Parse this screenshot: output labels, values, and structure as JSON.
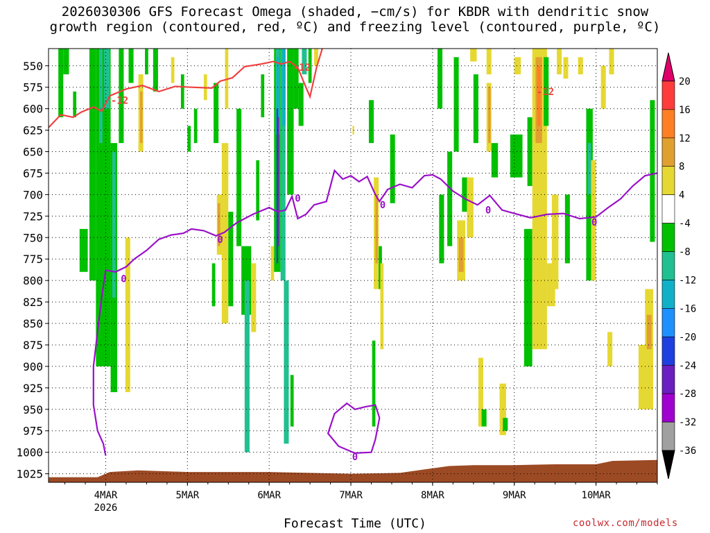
{
  "title_line1": "2026030306 GFS Forecast Omega (shaded, −cm/s) for KBDR with dendritic snow",
  "title_line2": "growth region (contoured, red, ºC) and freezing level (contoured, purple, ºC)",
  "credit": "coolwx.com/models",
  "chart_data": {
    "type": "time-height cross-section",
    "title": "2026030306 GFS Forecast Omega (shaded, −cm/s) for KBDR with dendritic snow growth region (contoured, red, ºC) and freezing level (contoured, purple, ºC)",
    "xlabel": "Forecast Time (UTC)",
    "ylabel": "",
    "x_ticks": [
      "4MAR",
      "5MAR",
      "6MAR",
      "7MAR",
      "8MAR",
      "9MAR",
      "10MAR"
    ],
    "x_tick_day": [
      4,
      5,
      6,
      7,
      8,
      9,
      10
    ],
    "x_year_label": "2026",
    "x_range_days": [
      3.3,
      10.75
    ],
    "y_ticks": [
      550,
      575,
      600,
      625,
      650,
      675,
      700,
      725,
      750,
      775,
      800,
      825,
      850,
      875,
      900,
      925,
      950,
      975,
      1000,
      1025
    ],
    "y_range_hpa": [
      530,
      1035
    ],
    "y_reversed": true,
    "grid": "dotted",
    "colorbar": {
      "levels": [
        20,
        16,
        12,
        8,
        4,
        -4,
        -8,
        -12,
        -16,
        -20,
        -24,
        -28,
        -32,
        -36
      ],
      "colors": [
        "#e0006a",
        "#ff3c3c",
        "#ff7f24",
        "#e0a030",
        "#e6d832",
        "#ffffff",
        "#00c000",
        "#20c090",
        "#10b0c8",
        "#1e90ff",
        "#1e40e0",
        "#6a20c0",
        "#a000d0",
        "#a0a0a0",
        "#000000"
      ]
    },
    "contour_labels": {
      "dgz": "-12",
      "freezing": "0"
    },
    "dgz_line_hpa": [
      [
        3.3,
        622
      ],
      [
        3.45,
        607
      ],
      [
        3.6,
        610
      ],
      [
        3.7,
        604
      ],
      [
        3.85,
        598
      ],
      [
        3.95,
        603
      ],
      [
        4.05,
        585
      ],
      [
        4.25,
        577
      ],
      [
        4.45,
        573
      ],
      [
        4.65,
        580
      ],
      [
        4.85,
        574
      ],
      [
        5.05,
        575
      ],
      [
        5.3,
        576
      ],
      [
        5.4,
        568
      ],
      [
        5.55,
        564
      ],
      [
        5.7,
        551
      ],
      [
        5.9,
        548
      ],
      [
        6.05,
        545
      ],
      [
        6.15,
        548
      ],
      [
        6.25,
        545
      ],
      [
        6.35,
        552
      ],
      [
        6.45,
        575
      ],
      [
        6.5,
        586
      ],
      [
        6.58,
        552
      ],
      [
        6.65,
        530
      ]
    ],
    "freezing_line_hpa": [
      [
        4.0,
        1004
      ],
      [
        3.97,
        990
      ],
      [
        3.9,
        975
      ],
      [
        3.85,
        945
      ],
      [
        3.85,
        900
      ],
      [
        3.9,
        860
      ],
      [
        3.95,
        820
      ],
      [
        4.0,
        788
      ],
      [
        4.12,
        790
      ],
      [
        4.25,
        784
      ],
      [
        4.35,
        775
      ],
      [
        4.5,
        765
      ],
      [
        4.65,
        752
      ],
      [
        4.8,
        747
      ],
      [
        4.95,
        745
      ],
      [
        5.05,
        740
      ],
      [
        5.2,
        742
      ],
      [
        5.35,
        748
      ],
      [
        5.45,
        744
      ],
      [
        5.6,
        733
      ],
      [
        5.8,
        723
      ],
      [
        6.0,
        715
      ],
      [
        6.1,
        720
      ],
      [
        6.2,
        718
      ],
      [
        6.28,
        702
      ],
      [
        6.35,
        728
      ],
      [
        6.45,
        723
      ],
      [
        6.55,
        712
      ],
      [
        6.7,
        708
      ],
      [
        6.8,
        672
      ],
      [
        6.9,
        682
      ],
      [
        7.0,
        678
      ],
      [
        7.1,
        685
      ],
      [
        7.2,
        679
      ],
      [
        7.3,
        700
      ],
      [
        7.35,
        708
      ],
      [
        7.45,
        694
      ],
      [
        7.6,
        688
      ],
      [
        7.75,
        692
      ],
      [
        7.9,
        678
      ],
      [
        8.0,
        677
      ],
      [
        8.1,
        682
      ],
      [
        8.25,
        696
      ],
      [
        8.4,
        705
      ],
      [
        8.55,
        712
      ],
      [
        8.7,
        701
      ],
      [
        8.85,
        718
      ],
      [
        9.0,
        722
      ],
      [
        9.2,
        727
      ],
      [
        9.4,
        723
      ],
      [
        9.6,
        722
      ],
      [
        9.8,
        728
      ],
      [
        10.0,
        726
      ],
      [
        10.15,
        715
      ],
      [
        10.3,
        705
      ],
      [
        10.45,
        690
      ],
      [
        10.6,
        678
      ],
      [
        10.75,
        675
      ]
    ],
    "freezing_loop_hpa": [
      [
        7.05,
        1001
      ],
      [
        6.85,
        993
      ],
      [
        6.72,
        978
      ],
      [
        6.8,
        955
      ],
      [
        6.95,
        943
      ],
      [
        7.05,
        950
      ],
      [
        7.18,
        947
      ],
      [
        7.3,
        945
      ],
      [
        7.35,
        960
      ],
      [
        7.3,
        985
      ],
      [
        7.25,
        1000
      ],
      [
        7.05,
        1001
      ]
    ],
    "terrain_hpa": [
      [
        3.3,
        1029
      ],
      [
        3.9,
        1029
      ],
      [
        4.05,
        1023
      ],
      [
        4.4,
        1021
      ],
      [
        5.0,
        1023
      ],
      [
        6.0,
        1023
      ],
      [
        7.0,
        1025
      ],
      [
        7.6,
        1024
      ],
      [
        7.9,
        1020
      ],
      [
        8.2,
        1016
      ],
      [
        8.5,
        1015
      ],
      [
        9.0,
        1015
      ],
      [
        9.5,
        1014
      ],
      [
        10.0,
        1014
      ],
      [
        10.2,
        1010
      ],
      [
        10.75,
        1009
      ]
    ],
    "omega_cells": [
      {
        "t0": 3.42,
        "t1": 3.48,
        "p0": 530,
        "p1": 610,
        "cls": "-8"
      },
      {
        "t0": 3.48,
        "t1": 3.55,
        "p0": 530,
        "p1": 560,
        "cls": "-8"
      },
      {
        "t0": 3.6,
        "t1": 3.64,
        "p0": 580,
        "p1": 610,
        "cls": "-8"
      },
      {
        "t0": 3.68,
        "t1": 3.78,
        "p0": 740,
        "p1": 790,
        "cls": "-8"
      },
      {
        "t0": 3.8,
        "t1": 3.88,
        "p0": 530,
        "p1": 800,
        "cls": "-8"
      },
      {
        "t0": 3.88,
        "t1": 4.06,
        "p0": 530,
        "p1": 900,
        "cls": "-8"
      },
      {
        "t0": 3.92,
        "t1": 3.96,
        "p0": 530,
        "p1": 640,
        "cls": "-12"
      },
      {
        "t0": 3.98,
        "t1": 4.05,
        "p0": 530,
        "p1": 600,
        "cls": "-12"
      },
      {
        "t0": 4.06,
        "t1": 4.14,
        "p0": 640,
        "p1": 930,
        "cls": "-8"
      },
      {
        "t0": 4.08,
        "t1": 4.12,
        "p0": 650,
        "p1": 820,
        "cls": "-12"
      },
      {
        "t0": 4.16,
        "t1": 4.22,
        "p0": 530,
        "p1": 640,
        "cls": "-8"
      },
      {
        "t0": 4.24,
        "t1": 4.3,
        "p0": 750,
        "p1": 930,
        "cls": "4"
      },
      {
        "t0": 4.28,
        "t1": 4.34,
        "p0": 530,
        "p1": 570,
        "cls": "-8"
      },
      {
        "t0": 4.4,
        "t1": 4.46,
        "p0": 560,
        "p1": 650,
        "cls": "4"
      },
      {
        "t0": 4.42,
        "t1": 4.45,
        "p0": 580,
        "p1": 640,
        "cls": "8"
      },
      {
        "t0": 4.48,
        "t1": 4.52,
        "p0": 530,
        "p1": 560,
        "cls": "-8"
      },
      {
        "t0": 4.58,
        "t1": 4.64,
        "p0": 530,
        "p1": 580,
        "cls": "-8"
      },
      {
        "t0": 4.8,
        "t1": 4.84,
        "p0": 540,
        "p1": 570,
        "cls": "4"
      },
      {
        "t0": 4.92,
        "t1": 4.96,
        "p0": 560,
        "p1": 600,
        "cls": "-8"
      },
      {
        "t0": 5.0,
        "t1": 5.04,
        "p0": 620,
        "p1": 650,
        "cls": "-8"
      },
      {
        "t0": 5.08,
        "t1": 5.12,
        "p0": 600,
        "p1": 640,
        "cls": "-8"
      },
      {
        "t0": 5.2,
        "t1": 5.24,
        "p0": 560,
        "p1": 590,
        "cls": "4"
      },
      {
        "t0": 5.3,
        "t1": 5.34,
        "p0": 780,
        "p1": 830,
        "cls": "-8"
      },
      {
        "t0": 5.32,
        "t1": 5.38,
        "p0": 570,
        "p1": 640,
        "cls": "-8"
      },
      {
        "t0": 5.36,
        "t1": 5.44,
        "p0": 700,
        "p1": 770,
        "cls": "4"
      },
      {
        "t0": 5.37,
        "t1": 5.4,
        "p0": 710,
        "p1": 760,
        "cls": "8"
      },
      {
        "t0": 5.42,
        "t1": 5.5,
        "p0": 640,
        "p1": 850,
        "cls": "4"
      },
      {
        "t0": 5.46,
        "t1": 5.5,
        "p0": 530,
        "p1": 600,
        "cls": "4"
      },
      {
        "t0": 5.5,
        "t1": 5.56,
        "p0": 720,
        "p1": 830,
        "cls": "-8"
      },
      {
        "t0": 5.6,
        "t1": 5.66,
        "p0": 600,
        "p1": 760,
        "cls": "-8"
      },
      {
        "t0": 5.66,
        "t1": 5.78,
        "p0": 760,
        "p1": 840,
        "cls": "-8"
      },
      {
        "t0": 5.7,
        "t1": 5.76,
        "p0": 800,
        "p1": 1000,
        "cls": "-12"
      },
      {
        "t0": 5.78,
        "t1": 5.84,
        "p0": 780,
        "p1": 860,
        "cls": "4"
      },
      {
        "t0": 5.84,
        "t1": 5.88,
        "p0": 660,
        "p1": 730,
        "cls": "-8"
      },
      {
        "t0": 5.9,
        "t1": 5.94,
        "p0": 560,
        "p1": 610,
        "cls": "-8"
      },
      {
        "t0": 6.02,
        "t1": 6.06,
        "p0": 760,
        "p1": 800,
        "cls": "4"
      },
      {
        "t0": 6.06,
        "t1": 6.14,
        "p0": 530,
        "p1": 790,
        "cls": "-8"
      },
      {
        "t0": 6.08,
        "t1": 6.13,
        "p0": 530,
        "p1": 630,
        "cls": "-12"
      },
      {
        "t0": 6.09,
        "t1": 6.12,
        "p0": 540,
        "p1": 610,
        "cls": "-16"
      },
      {
        "t0": 6.09,
        "t1": 6.11,
        "p0": 600,
        "p1": 780,
        "cls": "-24"
      },
      {
        "t0": 6.1,
        "t1": 6.12,
        "p0": 610,
        "p1": 760,
        "cls": "-28"
      },
      {
        "t0": 6.14,
        "t1": 6.2,
        "p0": 530,
        "p1": 800,
        "cls": "-12"
      },
      {
        "t0": 6.16,
        "t1": 6.2,
        "p0": 530,
        "p1": 620,
        "cls": "-16"
      },
      {
        "t0": 6.18,
        "t1": 6.24,
        "p0": 800,
        "p1": 990,
        "cls": "-12"
      },
      {
        "t0": 6.22,
        "t1": 6.3,
        "p0": 530,
        "p1": 700,
        "cls": "-8"
      },
      {
        "t0": 6.26,
        "t1": 6.3,
        "p0": 910,
        "p1": 970,
        "cls": "-8"
      },
      {
        "t0": 6.3,
        "t1": 6.36,
        "p0": 530,
        "p1": 600,
        "cls": "-8"
      },
      {
        "t0": 6.36,
        "t1": 6.42,
        "p0": 570,
        "p1": 620,
        "cls": "-8"
      },
      {
        "t0": 6.4,
        "t1": 6.46,
        "p0": 530,
        "p1": 560,
        "cls": "-12"
      },
      {
        "t0": 6.48,
        "t1": 6.52,
        "p0": 530,
        "p1": 570,
        "cls": "-8"
      },
      {
        "t0": 6.55,
        "t1": 6.6,
        "p0": 530,
        "p1": 550,
        "cls": "4"
      },
      {
        "t0": 7.02,
        "t1": 7.04,
        "p0": 620,
        "p1": 630,
        "cls": "4"
      },
      {
        "t0": 7.22,
        "t1": 7.28,
        "p0": 590,
        "p1": 640,
        "cls": "-8"
      },
      {
        "t0": 7.26,
        "t1": 7.3,
        "p0": 870,
        "p1": 970,
        "cls": "-8"
      },
      {
        "t0": 7.28,
        "t1": 7.34,
        "p0": 680,
        "p1": 810,
        "cls": "4"
      },
      {
        "t0": 7.3,
        "t1": 7.33,
        "p0": 700,
        "p1": 780,
        "cls": "8"
      },
      {
        "t0": 7.34,
        "t1": 7.38,
        "p0": 760,
        "p1": 810,
        "cls": "-8"
      },
      {
        "t0": 7.36,
        "t1": 7.4,
        "p0": 780,
        "p1": 880,
        "cls": "4"
      },
      {
        "t0": 7.48,
        "t1": 7.54,
        "p0": 630,
        "p1": 710,
        "cls": "-8"
      },
      {
        "t0": 8.06,
        "t1": 8.12,
        "p0": 530,
        "p1": 600,
        "cls": "-8"
      },
      {
        "t0": 8.08,
        "t1": 8.14,
        "p0": 700,
        "p1": 780,
        "cls": "-8"
      },
      {
        "t0": 8.18,
        "t1": 8.24,
        "p0": 650,
        "p1": 760,
        "cls": "-8"
      },
      {
        "t0": 8.26,
        "t1": 8.32,
        "p0": 540,
        "p1": 650,
        "cls": "-8"
      },
      {
        "t0": 8.3,
        "t1": 8.4,
        "p0": 730,
        "p1": 800,
        "cls": "4"
      },
      {
        "t0": 8.32,
        "t1": 8.38,
        "p0": 750,
        "p1": 790,
        "cls": "8"
      },
      {
        "t0": 8.36,
        "t1": 8.44,
        "p0": 680,
        "p1": 720,
        "cls": "-8"
      },
      {
        "t0": 8.42,
        "t1": 8.5,
        "p0": 680,
        "p1": 750,
        "cls": "4"
      },
      {
        "t0": 8.46,
        "t1": 8.54,
        "p0": 530,
        "p1": 545,
        "cls": "4"
      },
      {
        "t0": 8.5,
        "t1": 8.56,
        "p0": 560,
        "p1": 640,
        "cls": "-8"
      },
      {
        "t0": 8.56,
        "t1": 8.62,
        "p0": 890,
        "p1": 970,
        "cls": "4"
      },
      {
        "t0": 8.6,
        "t1": 8.66,
        "p0": 950,
        "p1": 970,
        "cls": "-8"
      },
      {
        "t0": 8.66,
        "t1": 8.72,
        "p0": 530,
        "p1": 560,
        "cls": "4"
      },
      {
        "t0": 8.66,
        "t1": 8.72,
        "p0": 570,
        "p1": 650,
        "cls": "4"
      },
      {
        "t0": 8.68,
        "t1": 8.71,
        "p0": 575,
        "p1": 640,
        "cls": "8"
      },
      {
        "t0": 8.72,
        "t1": 8.8,
        "p0": 640,
        "p1": 680,
        "cls": "-8"
      },
      {
        "t0": 8.82,
        "t1": 8.9,
        "p0": 920,
        "p1": 980,
        "cls": "4"
      },
      {
        "t0": 8.86,
        "t1": 8.92,
        "p0": 960,
        "p1": 975,
        "cls": "-8"
      },
      {
        "t0": 8.95,
        "t1": 9.1,
        "p0": 630,
        "p1": 680,
        "cls": "-8"
      },
      {
        "t0": 9.0,
        "t1": 9.08,
        "p0": 540,
        "p1": 560,
        "cls": "4"
      },
      {
        "t0": 9.12,
        "t1": 9.22,
        "p0": 740,
        "p1": 900,
        "cls": "-8"
      },
      {
        "t0": 9.16,
        "t1": 9.22,
        "p0": 610,
        "p1": 690,
        "cls": "-8"
      },
      {
        "t0": 9.22,
        "t1": 9.4,
        "p0": 530,
        "p1": 880,
        "cls": "4"
      },
      {
        "t0": 9.26,
        "t1": 9.34,
        "p0": 540,
        "p1": 640,
        "cls": "8"
      },
      {
        "t0": 9.28,
        "t1": 9.32,
        "p0": 550,
        "p1": 620,
        "cls": "12"
      },
      {
        "t0": 9.36,
        "t1": 9.42,
        "p0": 540,
        "p1": 620,
        "cls": "-8"
      },
      {
        "t0": 9.4,
        "t1": 9.5,
        "p0": 780,
        "p1": 830,
        "cls": "4"
      },
      {
        "t0": 9.46,
        "t1": 9.54,
        "p0": 700,
        "p1": 810,
        "cls": "4"
      },
      {
        "t0": 9.52,
        "t1": 9.58,
        "p0": 530,
        "p1": 560,
        "cls": "4"
      },
      {
        "t0": 9.6,
        "t1": 9.66,
        "p0": 540,
        "p1": 565,
        "cls": "4"
      },
      {
        "t0": 9.62,
        "t1": 9.68,
        "p0": 700,
        "p1": 780,
        "cls": "-8"
      },
      {
        "t0": 9.78,
        "t1": 9.84,
        "p0": 540,
        "p1": 560,
        "cls": "4"
      },
      {
        "t0": 9.88,
        "t1": 9.96,
        "p0": 600,
        "p1": 800,
        "cls": "-8"
      },
      {
        "t0": 9.9,
        "t1": 9.94,
        "p0": 640,
        "p1": 700,
        "cls": "-12"
      },
      {
        "t0": 9.94,
        "t1": 10.0,
        "p0": 660,
        "p1": 800,
        "cls": "4"
      },
      {
        "t0": 10.06,
        "t1": 10.12,
        "p0": 550,
        "p1": 600,
        "cls": "4"
      },
      {
        "t0": 10.14,
        "t1": 10.2,
        "p0": 860,
        "p1": 900,
        "cls": "4"
      },
      {
        "t0": 10.16,
        "t1": 10.22,
        "p0": 530,
        "p1": 560,
        "cls": "4"
      },
      {
        "t0": 10.52,
        "t1": 10.62,
        "p0": 875,
        "p1": 950,
        "cls": "4"
      },
      {
        "t0": 10.6,
        "t1": 10.7,
        "p0": 810,
        "p1": 950,
        "cls": "4"
      },
      {
        "t0": 10.62,
        "t1": 10.68,
        "p0": 840,
        "p1": 880,
        "cls": "8"
      },
      {
        "t0": 10.66,
        "t1": 10.72,
        "p0": 590,
        "p1": 755,
        "cls": "-8"
      }
    ]
  }
}
